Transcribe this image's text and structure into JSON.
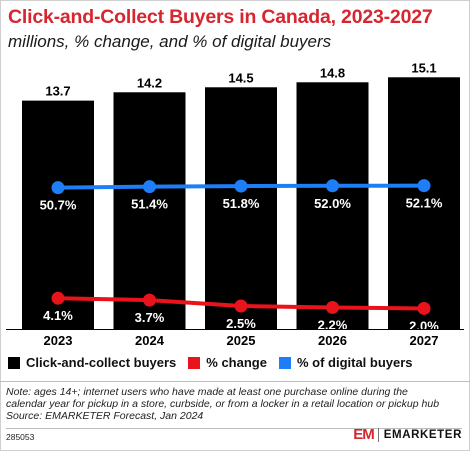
{
  "header": {
    "title": "Click-and-Collect Buyers in Canada, 2023-2027",
    "subtitle": "millions, % change, and % of digital buyers"
  },
  "legend": {
    "items": [
      {
        "label": "Click-and-collect buyers",
        "color": "#000000"
      },
      {
        "label": "% change",
        "color": "#e8131b"
      },
      {
        "label": "% of digital buyers",
        "color": "#1e7ef7"
      }
    ]
  },
  "chart_data": {
    "type": "bar",
    "categories": [
      "2023",
      "2024",
      "2025",
      "2026",
      "2027"
    ],
    "series": [
      {
        "name": "Click-and-collect buyers",
        "kind": "bar",
        "color": "#000000",
        "values": [
          13.7,
          14.2,
          14.5,
          14.8,
          15.1
        ],
        "labels": [
          "13.7",
          "14.2",
          "14.5",
          "14.8",
          "15.1"
        ]
      },
      {
        "name": "% change",
        "kind": "line",
        "color": "#e8131b",
        "values": [
          4.1,
          3.7,
          2.5,
          2.2,
          2.0
        ],
        "labels": [
          "4.1%",
          "3.7%",
          "2.5%",
          "2.2%",
          "2.0%"
        ]
      },
      {
        "name": "% of digital buyers",
        "kind": "line",
        "color": "#1e7ef7",
        "values": [
          50.7,
          51.4,
          51.8,
          52.0,
          52.1
        ],
        "labels": [
          "50.7%",
          "51.4%",
          "51.8%",
          "52.0%",
          "52.1%"
        ]
      }
    ],
    "grid": false,
    "legend_position": "bottom-left"
  },
  "footer": {
    "note_lines": [
      "Note: ages 14+; internet users who have made at least one purchase online during the",
      "calendar year for pickup in a store, curbside, or from a locker in a retail location or pickup hub",
      "Source: EMARKETER Forecast, Jan 2024"
    ],
    "chart_id": "285053",
    "brand_mark": "EM",
    "brand_name": "EMARKETER"
  }
}
